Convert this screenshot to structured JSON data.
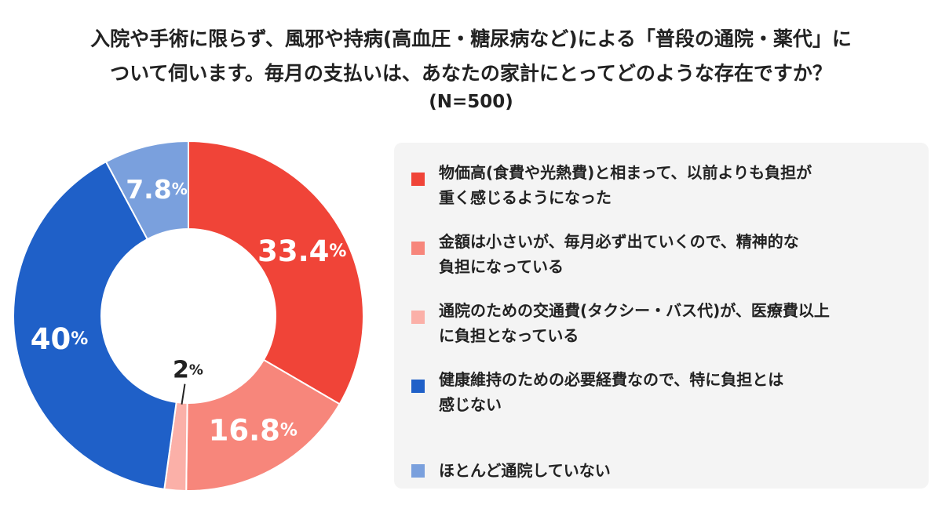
{
  "title_lines": [
    "入院や手術に限らず、風邪や持病(高血圧・糖尿病など)による「普段の通院・薬代」に",
    "ついて伺います。毎月の支払いは、あなたの家計にとってどのような存在ですか？"
  ],
  "subtitle": "(N=500)",
  "chart_data": {
    "type": "pie",
    "donut": true,
    "title": "入院や手術に限らず、風邪や持病(高血圧・糖尿病など)による「普段の通院・薬代」について伺います。毎月の支払いは、あなたの家計にとってどのような存在ですか？",
    "subtitle": "(N=500)",
    "legend_position": "right",
    "unit": "%",
    "categories": [
      "物価高(食費や光熱費)と相まって、以前よりも負担が重く感じるようになった",
      "金額は小さいが、毎月必ず出ていくので、精神的な負担になっている",
      "通院のための交通費(タクシー・バス代)が、医療費以上に負担となっている",
      "健康維持のための必要経費なので、特に負担とは感じない",
      "ほとんど通院していない"
    ],
    "values": [
      33.4,
      16.8,
      2,
      40,
      7.8
    ],
    "labels": [
      "33.4",
      "16.8",
      "2",
      "40",
      "7.8"
    ],
    "colors": [
      "#f04438",
      "#f7867b",
      "#fbb0a8",
      "#1f60c8",
      "#7aa0dd"
    ]
  },
  "legend": [
    {
      "lines": [
        "物価高(食費や光熱費)と相まって、以前よりも負担が",
        "重く感じるようになった"
      ]
    },
    {
      "lines": [
        "金額は小さいが、毎月必ず出ていくので、精神的な",
        "負担になっている"
      ]
    },
    {
      "lines": [
        "通院のための交通費(タクシー・バス代)が、医療費以上",
        "に負担となっている"
      ]
    },
    {
      "lines": [
        "健康維持のための必要経費なので、特に負担とは",
        "感じない"
      ]
    },
    {
      "lines": [
        "ほとんど通院していない"
      ]
    }
  ]
}
